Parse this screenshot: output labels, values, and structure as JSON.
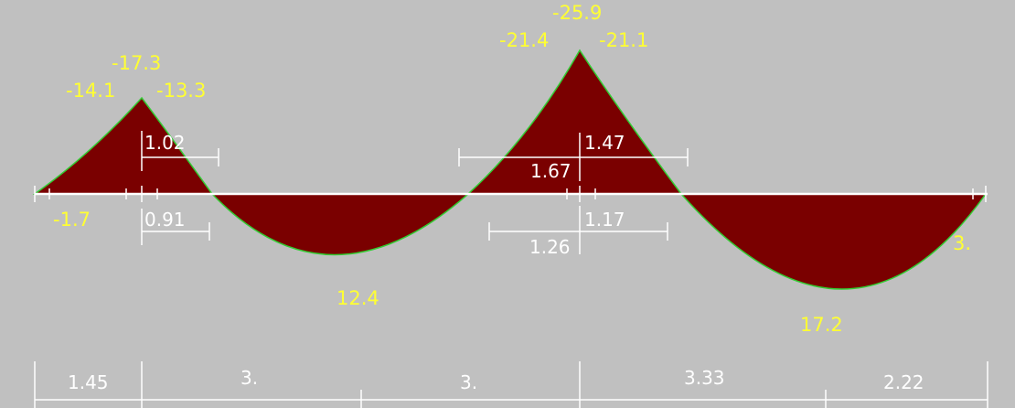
{
  "colors": {
    "background": "#c0c0c0",
    "fill": "#7a0000",
    "outline": "#33cc33",
    "beam_line": "#ffffff",
    "value_text": "#ffff33",
    "dimension_text": "#ffffff"
  },
  "moment_values": {
    "support1_left": "-14.1",
    "support1_peak": "-17.3",
    "support1_right": "-13.3",
    "left_end": "-1.7",
    "span2_max": "12.4",
    "support2_left": "-21.4",
    "support2_peak": "-25.9",
    "support2_right": "-21.1",
    "span3_max": "17.2",
    "right_end": "3."
  },
  "upper_dimensions": {
    "support1_right": "1.02",
    "support2_left": "1.67",
    "support2_right": "1.47"
  },
  "lower_dimensions": {
    "support1_right": "0.91",
    "support2_left": "1.26",
    "support2_right": "1.17"
  },
  "spans": [
    "1.45",
    "3.",
    "3.",
    "3.33",
    "2.22"
  ]
}
